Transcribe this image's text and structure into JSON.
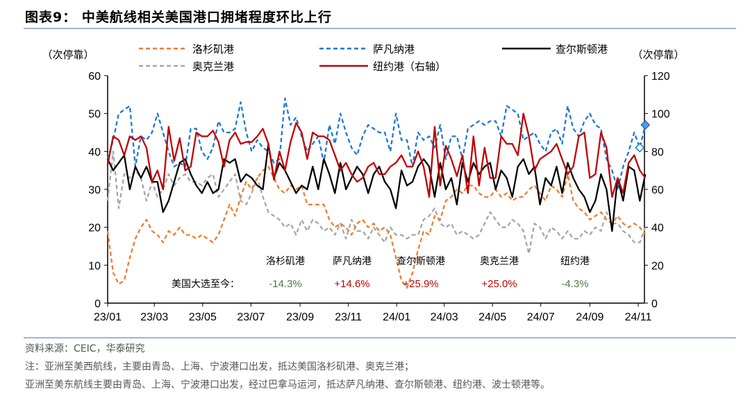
{
  "title": "图表9：  中美航线相关美国港口拥堵程度环比上行",
  "footer": {
    "source": "资料来源：CEIC，华泰研究",
    "note1": "注：亚洲至美西航线，主要由青岛、上海、宁波港口出发，抵达美国洛杉矶港、奥克兰港；",
    "note2": "亚洲至美东航线主要由青岛、上海、宁波港口出发，经过巴拿马运河，抵达萨凡纳港、查尔斯顿港、纽约港、波士顿港等。"
  },
  "chart_data": {
    "type": "line",
    "ylabel_left": "（次停靠）",
    "ylabel_right": "（次停靠）",
    "ylim_left": [
      0,
      60
    ],
    "ylim_right": [
      0,
      120
    ],
    "yticks_left": [
      "0",
      "10",
      "20",
      "30",
      "40",
      "50",
      "60"
    ],
    "yticks_right": [
      "0",
      "20",
      "40",
      "60",
      "80",
      "100",
      "120"
    ],
    "xticks": [
      "23/01",
      "23/03",
      "23/05",
      "23/07",
      "23/09",
      "23/11",
      "24/01",
      "24/03",
      "24/05",
      "24/07",
      "24/09",
      "24/11"
    ],
    "xtick_dates": [
      "2023-01-01",
      "2023-03-01",
      "2023-05-01",
      "2023-07-01",
      "2023-09-01",
      "2023-11-01",
      "2024-01-01",
      "2024-03-01",
      "2024-05-01",
      "2024-07-01",
      "2024-09-01",
      "2024-11-01"
    ],
    "grid": false,
    "legend_position": "top",
    "x": [
      "2023-01-01",
      "2023-01-08",
      "2023-01-15",
      "2023-01-22",
      "2023-01-29",
      "2023-02-05",
      "2023-02-12",
      "2023-02-19",
      "2023-02-26",
      "2023-03-05",
      "2023-03-12",
      "2023-03-19",
      "2023-03-26",
      "2023-04-02",
      "2023-04-09",
      "2023-04-16",
      "2023-04-23",
      "2023-04-30",
      "2023-05-07",
      "2023-05-14",
      "2023-05-21",
      "2023-05-28",
      "2023-06-04",
      "2023-06-11",
      "2023-06-18",
      "2023-06-25",
      "2023-07-02",
      "2023-07-09",
      "2023-07-16",
      "2023-07-23",
      "2023-07-30",
      "2023-08-06",
      "2023-08-13",
      "2023-08-20",
      "2023-08-27",
      "2023-09-03",
      "2023-09-10",
      "2023-09-17",
      "2023-09-24",
      "2023-10-01",
      "2023-10-08",
      "2023-10-15",
      "2023-10-22",
      "2023-10-29",
      "2023-11-05",
      "2023-11-12",
      "2023-11-19",
      "2023-11-26",
      "2023-12-03",
      "2023-12-10",
      "2023-12-17",
      "2023-12-24",
      "2023-12-31",
      "2024-01-07",
      "2024-01-14",
      "2024-01-21",
      "2024-01-28",
      "2024-02-04",
      "2024-02-11",
      "2024-02-18",
      "2024-02-25",
      "2024-03-03",
      "2024-03-10",
      "2024-03-17",
      "2024-03-24",
      "2024-03-31",
      "2024-04-07",
      "2024-04-14",
      "2024-04-21",
      "2024-04-28",
      "2024-05-05",
      "2024-05-12",
      "2024-05-19",
      "2024-05-26",
      "2024-06-02",
      "2024-06-09",
      "2024-06-16",
      "2024-06-23",
      "2024-06-30",
      "2024-07-07",
      "2024-07-14",
      "2024-07-21",
      "2024-07-28",
      "2024-08-04",
      "2024-08-11",
      "2024-08-18",
      "2024-08-25",
      "2024-09-01",
      "2024-09-08",
      "2024-09-15",
      "2024-09-22",
      "2024-09-29",
      "2024-10-06",
      "2024-10-13",
      "2024-10-20",
      "2024-10-27",
      "2024-11-03",
      "2024-11-10"
    ],
    "series": [
      {
        "name": "洛杉矶港",
        "axis": "left",
        "color": "#ed7d31",
        "style": "dashed",
        "values": [
          19,
          8,
          5,
          6,
          12,
          17,
          20,
          22,
          19,
          18,
          16,
          19,
          18,
          20,
          18,
          18,
          17,
          18,
          17,
          16,
          18,
          22,
          26,
          23,
          28,
          32,
          30,
          33,
          35,
          36,
          33,
          30,
          29,
          31,
          30,
          31,
          26,
          26,
          26,
          26,
          22,
          20,
          21,
          20,
          18,
          21,
          22,
          20,
          21,
          19,
          20,
          18,
          12,
          6,
          4,
          8,
          14,
          19,
          18,
          23,
          22,
          27,
          28,
          30,
          29,
          31,
          31,
          29,
          28,
          28,
          30,
          28,
          29,
          27,
          28,
          28,
          30,
          31,
          29,
          27,
          31,
          30,
          28,
          34,
          27,
          25,
          24,
          22,
          23,
          24,
          22,
          21,
          23,
          21,
          20,
          21,
          20,
          18
        ]
      },
      {
        "name": "萨凡纳港",
        "axis": "left",
        "color": "#1f77d0",
        "style": "dashed",
        "values": [
          38,
          43,
          50,
          51,
          52,
          36,
          44,
          43,
          45,
          50,
          45,
          40,
          36,
          37,
          36,
          46,
          46,
          40,
          38,
          41,
          48,
          45,
          45,
          46,
          53,
          45,
          40,
          43,
          41,
          40,
          37,
          38,
          54,
          47,
          49,
          44,
          40,
          42,
          44,
          37,
          47,
          42,
          50,
          45,
          41,
          39,
          44,
          47,
          46,
          45,
          45,
          40,
          50,
          43,
          43,
          36,
          45,
          43,
          44,
          41,
          47,
          38,
          44,
          44,
          38,
          46,
          47,
          48,
          47,
          48,
          48,
          44,
          52,
          51,
          50,
          43,
          44,
          45,
          42,
          40,
          45,
          46,
          42,
          52,
          46,
          44,
          48,
          50,
          47,
          46,
          38,
          35,
          30,
          36,
          40,
          45,
          41,
          47
        ]
      },
      {
        "name": "查尔斯顿港",
        "axis": "left",
        "color": "#000000",
        "style": "solid",
        "values": [
          38,
          35,
          37,
          39,
          30,
          36,
          33,
          36,
          32,
          32,
          24,
          27,
          32,
          37,
          38,
          34,
          31,
          29,
          32,
          29,
          30,
          38,
          37,
          38,
          32,
          34,
          33,
          31,
          30,
          42,
          33,
          37,
          35,
          32,
          29,
          31,
          30,
          36,
          30,
          38,
          34,
          29,
          37,
          30,
          33,
          36,
          34,
          29,
          34,
          36,
          32,
          30,
          25,
          35,
          31,
          32,
          36,
          38,
          36,
          28,
          37,
          30,
          33,
          26,
          37,
          32,
          37,
          34,
          36,
          37,
          30,
          35,
          33,
          28,
          36,
          38,
          34,
          36,
          26,
          33,
          31,
          36,
          29,
          37,
          33,
          30,
          28,
          24,
          27,
          34,
          30,
          19,
          33,
          27,
          36,
          35,
          27,
          34
        ]
      },
      {
        "name": "奥克兰港",
        "axis": "left",
        "color": "#a6a6a6",
        "style": "dashed",
        "values": [
          27,
          40,
          25,
          34,
          33,
          35,
          33,
          27,
          32,
          28,
          30,
          34,
          31,
          33,
          34,
          32,
          32,
          31,
          33,
          34,
          28,
          30,
          32,
          34,
          27,
          26,
          29,
          33,
          28,
          24,
          23,
          22,
          20,
          21,
          18,
          22,
          19,
          22,
          21,
          19,
          20,
          18,
          21,
          17,
          22,
          19,
          19,
          17,
          20,
          18,
          16,
          20,
          18,
          18,
          17,
          18,
          18,
          22,
          23,
          25,
          21,
          20,
          21,
          18,
          19,
          18,
          17,
          18,
          21,
          24,
          22,
          20,
          20,
          22,
          21,
          19,
          13,
          21,
          20,
          17,
          20,
          19,
          17,
          19,
          17,
          17,
          19,
          18,
          20,
          19,
          24,
          21,
          21,
          19,
          18,
          16,
          16,
          20
        ]
      },
      {
        "name": "纽约港（右轴）",
        "axis": "right",
        "color": "#c00000",
        "style": "solid",
        "values": [
          73,
          88,
          86,
          78,
          88,
          86,
          88,
          82,
          64,
          70,
          60,
          93,
          75,
          87,
          70,
          72,
          90,
          88,
          88,
          91,
          85,
          72,
          86,
          90,
          84,
          85,
          85,
          88,
          92,
          84,
          65,
          80,
          70,
          85,
          95,
          90,
          76,
          90,
          88,
          88,
          86,
          78,
          70,
          74,
          68,
          64,
          66,
          72,
          74,
          68,
          68,
          72,
          74,
          78,
          72,
          72,
          80,
          72,
          56,
          93,
          62,
          83,
          76,
          67,
          78,
          58,
          88,
          62,
          82,
          66,
          66,
          88,
          84,
          84,
          78,
          100,
          88,
          70,
          76,
          78,
          80,
          84,
          76,
          68,
          72,
          88,
          90,
          66,
          68,
          90,
          82,
          56,
          66,
          58,
          74,
          78,
          70,
          66
        ]
      }
    ],
    "annotations": {
      "row_label": "美国大选至今：",
      "items": [
        {
          "port": "洛杉矶港",
          "change": "-14.3%",
          "color": "#4e7a3a"
        },
        {
          "port": "萨凡纳港",
          "change": "+14.6%",
          "color": "#c00000"
        },
        {
          "port": "查尔斯顿港",
          "change": "+25.9%",
          "color": "#c00000"
        },
        {
          "port": "奥克兰港",
          "change": "+25.0%",
          "color": "#c00000"
        },
        {
          "port": "纽约港",
          "change": "-4.3%",
          "color": "#4e7a3a"
        }
      ]
    }
  }
}
